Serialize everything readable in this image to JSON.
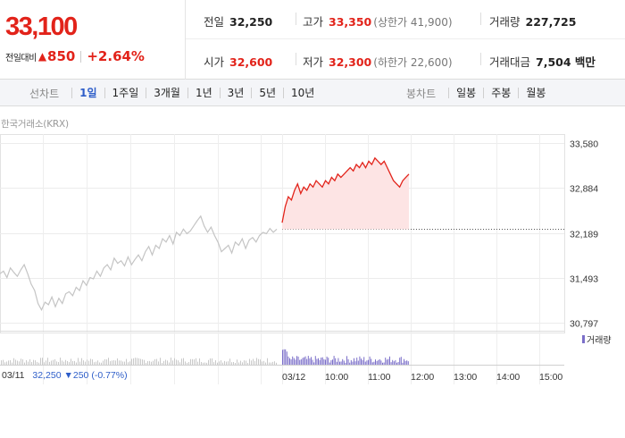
{
  "summary": {
    "price": "33,100",
    "change_label": "전일대비",
    "change_arrow": "▲",
    "change_value": "850",
    "change_pct": "+2.64%",
    "prev_close_label": "전일",
    "prev_close": "32,250",
    "open_label": "시가",
    "open": "32,600",
    "high_label": "고가",
    "high": "33,350",
    "upper_limit_label": "(상한가 41,900)",
    "low_label": "저가",
    "low": "32,300",
    "lower_limit_label": "(하한가 22,600)",
    "volume_label": "거래량",
    "volume": "227,725",
    "amount_label": "거래대금",
    "amount": "7,504 백만"
  },
  "tabs": {
    "period_label": "선차트",
    "period": [
      "1일",
      "1주일",
      "3개월",
      "1년",
      "3년",
      "5년",
      "10년"
    ],
    "period_active": 0,
    "candle_label": "봉차트",
    "candle": [
      "일봉",
      "주봉",
      "월봉"
    ]
  },
  "source": "한국거래소(KRX)",
  "colors": {
    "up": "#e2231a",
    "down": "#2e5ec9",
    "prev_day_line": "#c4c4c4",
    "volume_today": "#7b6fc9",
    "volume_prev": "#c8c8c8",
    "fill_up": "#fde4e4"
  },
  "info_line": {
    "date": "03/11",
    "close": "32,250",
    "arrow": "▼",
    "change": "250",
    "pct": "(-0.77%)"
  },
  "chart_data": {
    "type": "line",
    "title": "",
    "y_ticks": [
      33580,
      32884,
      32189,
      31493,
      30797
    ],
    "y_tick_labels": [
      "33,580",
      "32,884",
      "32,189",
      "31,493",
      "30,797"
    ],
    "ylim": [
      30650,
      33720
    ],
    "reference_line": 32250,
    "x_labels": [
      "03/11",
      "03/12",
      "10:00",
      "11:00",
      "12:00",
      "13:00",
      "14:00",
      "15:00"
    ],
    "grid": true,
    "legend": {
      "position": "right",
      "items": [
        "거래량"
      ]
    },
    "series": [
      {
        "session": "03/11",
        "values": [
          31560,
          31600,
          31500,
          31650,
          31580,
          31520,
          31620,
          31700,
          31560,
          31400,
          31300,
          31100,
          31000,
          31120,
          31080,
          31200,
          31050,
          31180,
          31100,
          31250,
          31280,
          31220,
          31350,
          31300,
          31450,
          31380,
          31500,
          31480,
          31600,
          31520,
          31650,
          31700,
          31620,
          31800,
          31720,
          31760,
          31680,
          31820,
          31700,
          31780,
          31850,
          31760,
          31900,
          31980,
          31850,
          32000,
          31950,
          32100,
          32050,
          32150,
          32020,
          32200,
          32150,
          32250,
          32180,
          32220,
          32300,
          32380,
          32450,
          32300,
          32200,
          32280,
          32150,
          32050,
          31900,
          31950,
          32000,
          31880,
          32050,
          32000,
          32100,
          31950,
          32080,
          32120,
          32050,
          32150,
          32200,
          32180,
          32260,
          32200,
          32250
        ]
      },
      {
        "session": "03/12",
        "values": [
          32350,
          32600,
          32750,
          32700,
          32850,
          32950,
          32800,
          32900,
          32850,
          32950,
          32900,
          33000,
          32950,
          32900,
          33000,
          32950,
          33050,
          33000,
          33100,
          33050,
          33100,
          33150,
          33200,
          33150,
          33250,
          33200,
          33280,
          33200,
          33300,
          33250,
          33350,
          33300,
          33250,
          33300,
          33200,
          33100,
          33000,
          32950,
          32900,
          33000,
          33050,
          33100
        ]
      }
    ],
    "volume_note": "volume bars shown without scale"
  }
}
